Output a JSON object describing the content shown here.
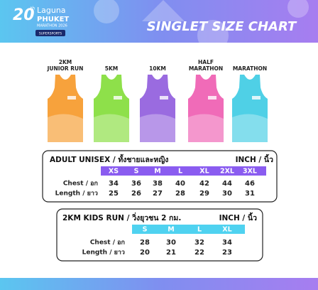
{
  "header": {
    "logo_number": "20",
    "logo_suffix": "th",
    "logo_name": "Laguna",
    "logo_place": "PHUKET",
    "logo_event": "MARATHON 2026",
    "sponsor": "SUPERSPORTS",
    "title": "SINGLET SIZE CHART"
  },
  "singlets": [
    {
      "label": "2KM JUNIOR RUN",
      "color": "#f7a23c"
    },
    {
      "label": "5KM",
      "color": "#8ee04a"
    },
    {
      "label": "10KM",
      "color": "#9a6be0"
    },
    {
      "label": "HALF MARATHON",
      "color": "#f06bb8"
    },
    {
      "label": "MARATHON",
      "color": "#4fd0e6"
    }
  ],
  "adult_table": {
    "title": "ADULT UNISEX / ทั้งชายและหญิง",
    "unit": "INCH / นิ้ว",
    "header_color": "#8a5cf0",
    "sizes": [
      "XS",
      "S",
      "M",
      "L",
      "XL",
      "2XL",
      "3XL"
    ],
    "rows": [
      {
        "label": "Chest / อก",
        "values": [
          34,
          36,
          38,
          40,
          42,
          44,
          46
        ]
      },
      {
        "label": "Length / ยาว",
        "values": [
          25,
          26,
          27,
          28,
          29,
          30,
          31
        ]
      }
    ]
  },
  "kids_table": {
    "title": "2KM KIDS RUN / วิ่งยุวชน 2 กม.",
    "unit": "INCH / นิ้ว",
    "header_color": "#4fd2f0",
    "sizes": [
      "S",
      "M",
      "L",
      "XL"
    ],
    "rows": [
      {
        "label": "Chest / อก",
        "values": [
          28,
          30,
          32,
          34
        ]
      },
      {
        "label": "Length / ยาว",
        "values": [
          20,
          21,
          22,
          23
        ]
      }
    ]
  }
}
